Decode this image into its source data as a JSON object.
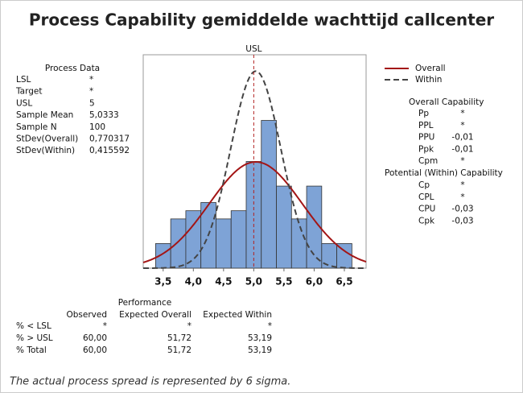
{
  "chart_data": {
    "type": "histogram",
    "title": "Process Capability gemiddelde wachttijd callcenter",
    "bins": [
      3.375,
      3.625,
      3.875,
      4.125,
      4.375,
      4.625,
      4.875,
      5.125,
      5.375,
      5.625,
      5.875,
      6.125,
      6.375,
      6.625
    ],
    "counts": [
      3,
      6,
      7,
      8,
      6,
      7,
      13,
      18,
      10,
      6,
      10,
      3,
      3
    ],
    "color": "#7ea3d6",
    "xlim": [
      3.17,
      6.86
    ],
    "ylim": [
      0,
      26
    ],
    "xticks": [
      {
        "value": 3.5,
        "label": "3,5"
      },
      {
        "value": 4.0,
        "label": "4,0"
      },
      {
        "value": 4.5,
        "label": "4,5"
      },
      {
        "value": 5.0,
        "label": "5,0"
      },
      {
        "value": 5.5,
        "label": "5,5"
      },
      {
        "value": 6.0,
        "label": "6,0"
      },
      {
        "value": 6.5,
        "label": "6,5"
      }
    ],
    "usl_color": "#b22222",
    "series": [
      {
        "name": "Overall",
        "color": "#a31515",
        "dash": false
      },
      {
        "name": "Within",
        "color": "#444444",
        "dash": true
      }
    ],
    "process_data": {
      "title": "Process Data",
      "rows": [
        [
          "LSL",
          "*"
        ],
        [
          "Target",
          "*"
        ],
        [
          "USL",
          5
        ],
        [
          "Sample Mean",
          {
            "value": 5.0333,
            "label": "5,0333"
          }
        ],
        [
          "Sample N",
          100
        ],
        [
          "StDev(Overall)",
          {
            "value": 0.770317,
            "label": "0,770317"
          }
        ],
        [
          "StDev(Within)",
          {
            "value": 0.415592,
            "label": "0,415592"
          }
        ]
      ]
    },
    "overall_capability": {
      "title": "Overall Capability",
      "rows": [
        [
          "Pp",
          "*"
        ],
        [
          "PPL",
          "*"
        ],
        [
          "PPU",
          "-0,01"
        ],
        [
          "Ppk",
          "-0,01"
        ],
        [
          "Cpm",
          "*"
        ]
      ]
    },
    "potential_capability": {
      "title": "Potential (Within) Capability",
      "rows": [
        [
          "Cp",
          "*"
        ],
        [
          "CPL",
          "*"
        ],
        [
          "CPU",
          "-0,03"
        ],
        [
          "Cpk",
          "-0,03"
        ]
      ]
    },
    "performance": {
      "title": "Performance",
      "columns": [
        "Observed",
        "Expected Overall",
        "Expected Within"
      ],
      "rows": [
        [
          "% < LSL",
          "*",
          "*",
          "*"
        ],
        [
          "% > USL",
          "60,00",
          "51,72",
          "53,19"
        ],
        [
          "% Total",
          "60,00",
          "51,72",
          "53,19"
        ]
      ]
    },
    "footnote": "The actual process spread is represented by 6 sigma."
  }
}
